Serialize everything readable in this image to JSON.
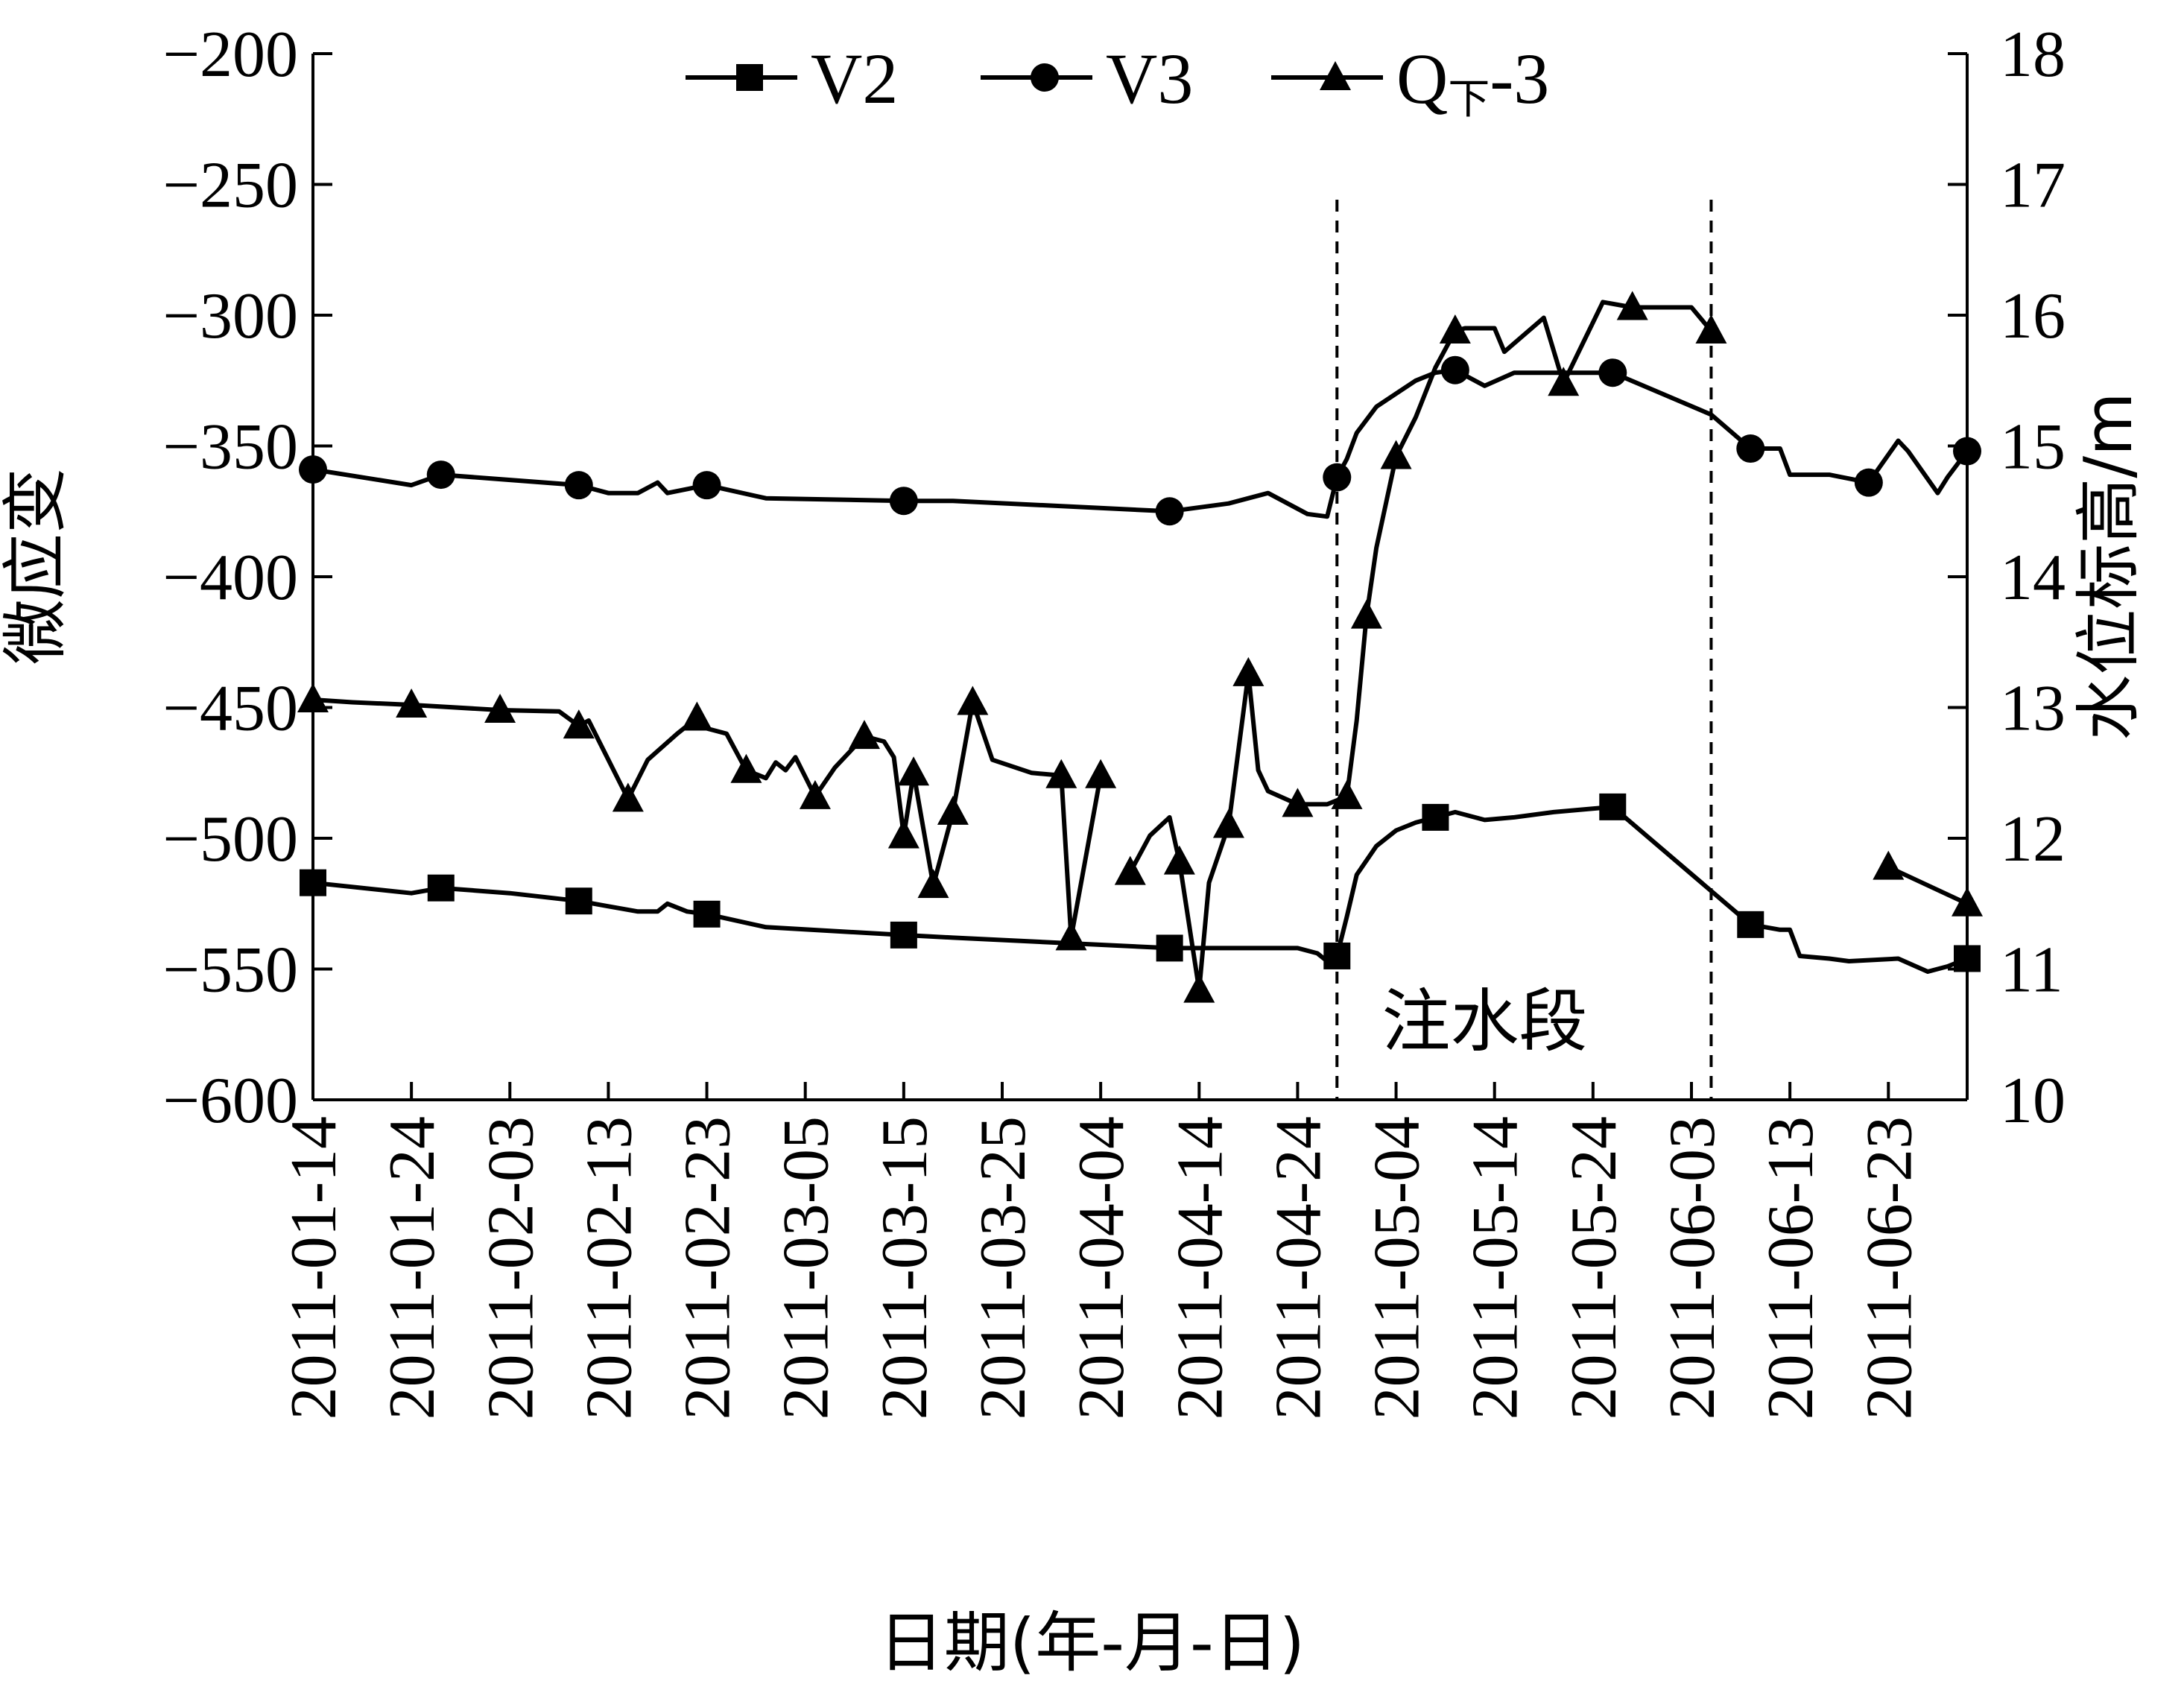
{
  "chart_data": {
    "type": "line",
    "xlabel": "日期(年-月-日)",
    "ylabel_left": "微应变",
    "ylabel_right": "水位标高/m",
    "x_range": [
      "2011-01-14",
      "2011-07-01"
    ],
    "ylim_left": [
      -600,
      -200
    ],
    "ylim_right": [
      10,
      18
    ],
    "x_ticks": [
      "2011-01-14",
      "2011-01-24",
      "2011-02-03",
      "2011-02-13",
      "2011-02-23",
      "2011-03-05",
      "2011-03-15",
      "2011-03-25",
      "2011-04-04",
      "2011-04-14",
      "2011-04-24",
      "2011-05-04",
      "2011-05-14",
      "2011-05-24",
      "2011-06-03",
      "2011-06-13",
      "2011-06-23"
    ],
    "y_ticks_left": [
      "-200",
      "-250",
      "-300",
      "-350",
      "-400",
      "-450",
      "-500",
      "-550",
      "-600"
    ],
    "y_ticks_right": [
      "18",
      "17",
      "16",
      "15",
      "14",
      "13",
      "12",
      "11",
      "10"
    ],
    "legend_position": "top",
    "legend": [
      {
        "text": "V2",
        "sub": "",
        "marker": "square"
      },
      {
        "text": "V3",
        "sub": "",
        "marker": "circle"
      },
      {
        "text": "Q",
        "sub": "下",
        "suffix": "-3",
        "marker": "triangle"
      }
    ],
    "annotation": {
      "text": "注水段",
      "x": "2011-05-13",
      "y": -570
    },
    "vlines": [
      "2011-04-28",
      "2011-06-05"
    ],
    "series": [
      {
        "name": "V2",
        "axis": "left",
        "marker": "square",
        "points": [
          [
            "2011-01-14",
            -517
          ],
          [
            "2011-01-24",
            -521
          ],
          [
            "2011-01-27",
            -519
          ],
          [
            "2011-02-03",
            -521
          ],
          [
            "2011-02-10",
            -524
          ],
          [
            "2011-02-13",
            -526
          ],
          [
            "2011-02-16",
            -528
          ],
          [
            "2011-02-18",
            -528
          ],
          [
            "2011-02-19",
            -525
          ],
          [
            "2011-02-21",
            -528
          ],
          [
            "2011-02-23",
            -529
          ],
          [
            "2011-03-01",
            -534
          ],
          [
            "2011-03-15",
            -537
          ],
          [
            "2011-03-20",
            -538
          ],
          [
            "2011-04-11",
            -542
          ],
          [
            "2011-04-18",
            -542
          ],
          [
            "2011-04-24",
            -542
          ],
          [
            "2011-04-26",
            -544
          ],
          [
            "2011-04-27",
            -547
          ],
          [
            "2011-04-28",
            -545
          ],
          [
            "2011-04-29",
            -530
          ],
          [
            "2011-04-30",
            -514
          ],
          [
            "2011-05-02",
            -503
          ],
          [
            "2011-05-04",
            -497
          ],
          [
            "2011-05-06",
            -494
          ],
          [
            "2011-05-08",
            -492
          ],
          [
            "2011-05-10",
            -490
          ],
          [
            "2011-05-13",
            -493
          ],
          [
            "2011-05-16",
            -492
          ],
          [
            "2011-05-20",
            -490
          ],
          [
            "2011-05-26",
            -488
          ],
          [
            "2011-06-09",
            -533
          ],
          [
            "2011-06-12",
            -535
          ],
          [
            "2011-06-13",
            -535
          ],
          [
            "2011-06-14",
            -545
          ],
          [
            "2011-06-17",
            -546
          ],
          [
            "2011-06-19",
            -547
          ],
          [
            "2011-06-24",
            -546
          ],
          [
            "2011-06-27",
            -551
          ],
          [
            "2011-06-29",
            -549
          ],
          [
            "2011-07-01",
            -546
          ]
        ],
        "markers": [
          "2011-01-14",
          "2011-01-27",
          "2011-02-10",
          "2011-02-23",
          "2011-03-15",
          "2011-04-11",
          "2011-04-28",
          "2011-05-08",
          "2011-05-26",
          "2011-06-09",
          "2011-07-01"
        ]
      },
      {
        "name": "V3",
        "axis": "left",
        "marker": "circle",
        "points": [
          [
            "2011-01-14",
            -359
          ],
          [
            "2011-01-24",
            -365
          ],
          [
            "2011-01-27",
            -361
          ],
          [
            "2011-02-10",
            -365
          ],
          [
            "2011-02-13",
            -368
          ],
          [
            "2011-02-16",
            -368
          ],
          [
            "2011-02-18",
            -364
          ],
          [
            "2011-02-19",
            -368
          ],
          [
            "2011-02-23",
            -365
          ],
          [
            "2011-03-01",
            -370
          ],
          [
            "2011-03-15",
            -371
          ],
          [
            "2011-03-20",
            -371
          ],
          [
            "2011-04-11",
            -375
          ],
          [
            "2011-04-17",
            -372
          ],
          [
            "2011-04-21",
            -368
          ],
          [
            "2011-04-25",
            -376
          ],
          [
            "2011-04-27",
            -377
          ],
          [
            "2011-04-28",
            -362
          ],
          [
            "2011-04-29",
            -355
          ],
          [
            "2011-04-30",
            -345
          ],
          [
            "2011-05-02",
            -335
          ],
          [
            "2011-05-04",
            -330
          ],
          [
            "2011-05-06",
            -325
          ],
          [
            "2011-05-08",
            -322
          ],
          [
            "2011-05-10",
            -321
          ],
          [
            "2011-05-13",
            -327
          ],
          [
            "2011-05-16",
            -322
          ],
          [
            "2011-05-20",
            -322
          ],
          [
            "2011-05-26",
            -322
          ],
          [
            "2011-06-05",
            -338
          ],
          [
            "2011-06-09",
            -351
          ],
          [
            "2011-06-12",
            -351
          ],
          [
            "2011-06-13",
            -361
          ],
          [
            "2011-06-17",
            -361
          ],
          [
            "2011-06-21",
            -364
          ],
          [
            "2011-06-24",
            -348
          ],
          [
            "2011-06-25",
            -352
          ],
          [
            "2011-06-28",
            -368
          ],
          [
            "2011-06-29",
            -362
          ],
          [
            "2011-07-01",
            -352
          ]
        ],
        "markers": [
          "2011-01-14",
          "2011-01-27",
          "2011-02-10",
          "2011-02-23",
          "2011-03-15",
          "2011-04-11",
          "2011-04-28",
          "2011-05-10",
          "2011-05-26",
          "2011-06-09",
          "2011-06-21",
          "2011-07-01"
        ]
      },
      {
        "name": "Q下-3",
        "axis": "right",
        "marker": "triangle",
        "segments": [
          [
            [
              "2011-01-14",
              13.06
            ],
            [
              "2011-01-18",
              13.04
            ],
            [
              "2011-01-24",
              13.02
            ],
            [
              "2011-02-02",
              12.98
            ],
            [
              "2011-02-08",
              12.97
            ],
            [
              "2011-02-10",
              12.86
            ],
            [
              "2011-02-11",
              12.9
            ],
            [
              "2011-02-15",
              12.3
            ],
            [
              "2011-02-17",
              12.6
            ],
            [
              "2011-02-20",
              12.8
            ],
            [
              "2011-02-22",
              12.92
            ],
            [
              "2011-02-23",
              12.84
            ],
            [
              "2011-02-25",
              12.8
            ],
            [
              "2011-02-27",
              12.52
            ],
            [
              "2011-03-01",
              12.46
            ],
            [
              "2011-03-02",
              12.58
            ],
            [
              "2011-03-03",
              12.52
            ],
            [
              "2011-03-04",
              12.62
            ],
            [
              "2011-03-06",
              12.32
            ],
            [
              "2011-03-08",
              12.54
            ],
            [
              "2011-03-11",
              12.78
            ],
            [
              "2011-03-13",
              12.74
            ],
            [
              "2011-03-14",
              12.62
            ],
            [
              "2011-03-15",
              12.02
            ],
            [
              "2011-03-16",
              12.5
            ],
            [
              "2011-03-18",
              11.64
            ],
            [
              "2011-03-20",
              12.2
            ],
            [
              "2011-03-22",
              13.04
            ],
            [
              "2011-03-24",
              12.6
            ],
            [
              "2011-03-28",
              12.5
            ],
            [
              "2011-03-31",
              12.48
            ],
            [
              "2011-04-01",
              11.24
            ],
            [
              "2011-04-04",
              12.48
            ]
          ],
          [
            [
              "2011-04-07",
              11.74
            ],
            [
              "2011-04-09",
              12.02
            ],
            [
              "2011-04-11",
              12.16
            ],
            [
              "2011-04-12",
              11.82
            ],
            [
              "2011-04-14",
              10.84
            ],
            [
              "2011-04-15",
              11.66
            ],
            [
              "2011-04-17",
              12.1
            ],
            [
              "2011-04-19",
              13.26
            ],
            [
              "2011-04-20",
              12.52
            ],
            [
              "2011-04-21",
              12.36
            ],
            [
              "2011-04-24",
              12.26
            ],
            [
              "2011-04-25",
              12.26
            ],
            [
              "2011-04-27",
              12.26
            ],
            [
              "2011-04-29",
              12.32
            ],
            [
              "2011-04-30",
              12.9
            ],
            [
              "2011-05-01",
              13.7
            ],
            [
              "2011-05-02",
              14.22
            ],
            [
              "2011-05-04",
              14.92
            ],
            [
              "2011-05-06",
              15.22
            ],
            [
              "2011-05-08",
              15.6
            ],
            [
              "2011-05-10",
              15.88
            ],
            [
              "2011-05-11",
              15.9
            ],
            [
              "2011-05-14",
              15.9
            ],
            [
              "2011-05-15",
              15.72
            ],
            [
              "2011-05-19",
              15.98
            ],
            [
              "2011-05-21",
              15.48
            ],
            [
              "2011-05-25",
              16.1
            ],
            [
              "2011-05-28",
              16.06
            ],
            [
              "2011-05-31",
              16.06
            ],
            [
              "2011-06-03",
              16.06
            ],
            [
              "2011-06-05",
              15.88
            ]
          ],
          [
            [
              "2011-06-23",
              11.78
            ],
            [
              "2011-07-01",
              11.5
            ]
          ]
        ],
        "markers": [
          "2011-01-14",
          "2011-01-24",
          "2011-02-02",
          "2011-02-10",
          "2011-02-15",
          "2011-02-22",
          "2011-02-27",
          "2011-03-06",
          "2011-03-11",
          "2011-03-15",
          "2011-03-16",
          "2011-03-18",
          "2011-03-20",
          "2011-03-22",
          "2011-03-31",
          "2011-04-01",
          "2011-04-04",
          "2011-04-07",
          "2011-04-12",
          "2011-04-14",
          "2011-04-17",
          "2011-04-19",
          "2011-04-24",
          "2011-04-29",
          "2011-05-01",
          "2011-05-04",
          "2011-05-10",
          "2011-05-21",
          "2011-05-28",
          "2011-06-05",
          "2011-06-23",
          "2011-07-01"
        ]
      }
    ]
  }
}
